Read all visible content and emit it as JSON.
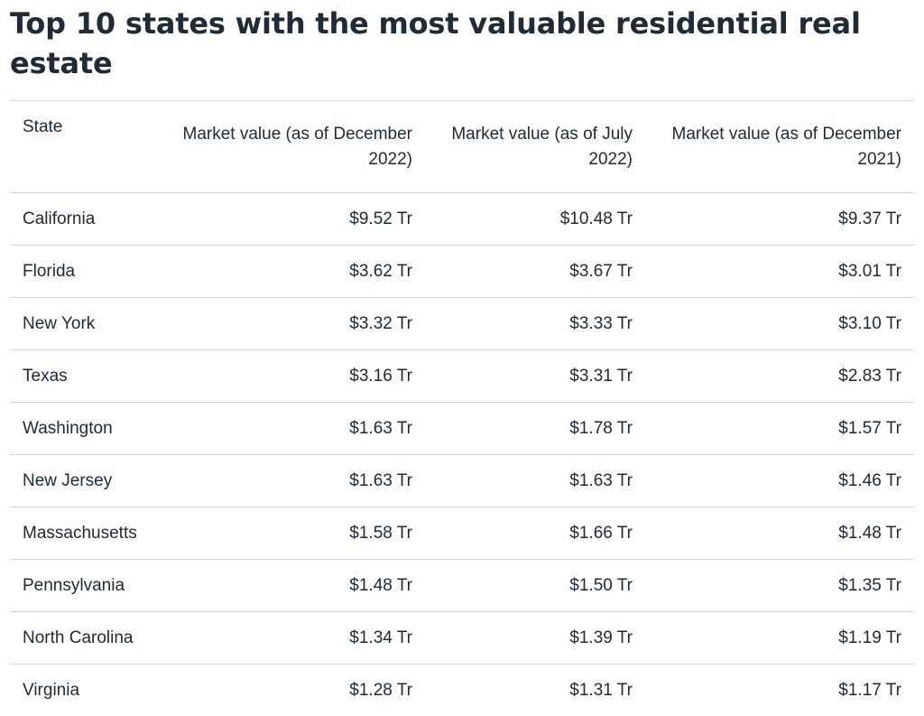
{
  "title": "Top 10 states with the most valuable residential real estate",
  "columns": [
    "State",
    "Market value (as of December 2022)",
    "Market value (as of July 2022)",
    "Market value (as of December 2021)"
  ],
  "rows": [
    [
      "California",
      "$9.52 Tr",
      "$10.48 Tr",
      "$9.37 Tr"
    ],
    [
      "Florida",
      "$3.62 Tr",
      "$3.67 Tr",
      "$3.01 Tr"
    ],
    [
      "New York",
      "$3.32 Tr",
      "$3.33 Tr",
      "$3.10 Tr"
    ],
    [
      "Texas",
      "$3.16 Tr",
      "$3.31 Tr",
      "$2.83 Tr"
    ],
    [
      "Washington",
      "$1.63 Tr",
      "$1.78 Tr",
      "$1.57 Tr"
    ],
    [
      "New Jersey",
      "$1.63 Tr",
      "$1.63 Tr",
      "$1.46 Tr"
    ],
    [
      "Massachusetts",
      "$1.58 Tr",
      "$1.66 Tr",
      "$1.48 Tr"
    ],
    [
      "Pennsylvania",
      "$1.48 Tr",
      "$1.50 Tr",
      "$1.35 Tr"
    ],
    [
      "North Carolina",
      "$1.34 Tr",
      "$1.39 Tr",
      "$1.19 Tr"
    ],
    [
      "Virginia",
      "$1.28 Tr",
      "$1.31 Tr",
      "$1.17 Tr"
    ]
  ],
  "chart_data": {
    "type": "table",
    "title": "Top 10 states with the most valuable residential real estate",
    "categories": [
      "California",
      "Florida",
      "New York",
      "Texas",
      "Washington",
      "New Jersey",
      "Massachusetts",
      "Pennsylvania",
      "North Carolina",
      "Virginia"
    ],
    "series": [
      {
        "name": "Market value (as of December 2022)",
        "values": [
          9.52,
          3.62,
          3.32,
          3.16,
          1.63,
          1.63,
          1.58,
          1.48,
          1.34,
          1.28
        ]
      },
      {
        "name": "Market value (as of July 2022)",
        "values": [
          10.48,
          3.67,
          3.33,
          3.31,
          1.78,
          1.63,
          1.66,
          1.5,
          1.39,
          1.31
        ]
      },
      {
        "name": "Market value (as of December 2021)",
        "values": [
          9.37,
          3.01,
          3.1,
          2.83,
          1.57,
          1.46,
          1.48,
          1.35,
          1.19,
          1.17
        ]
      }
    ]
  }
}
